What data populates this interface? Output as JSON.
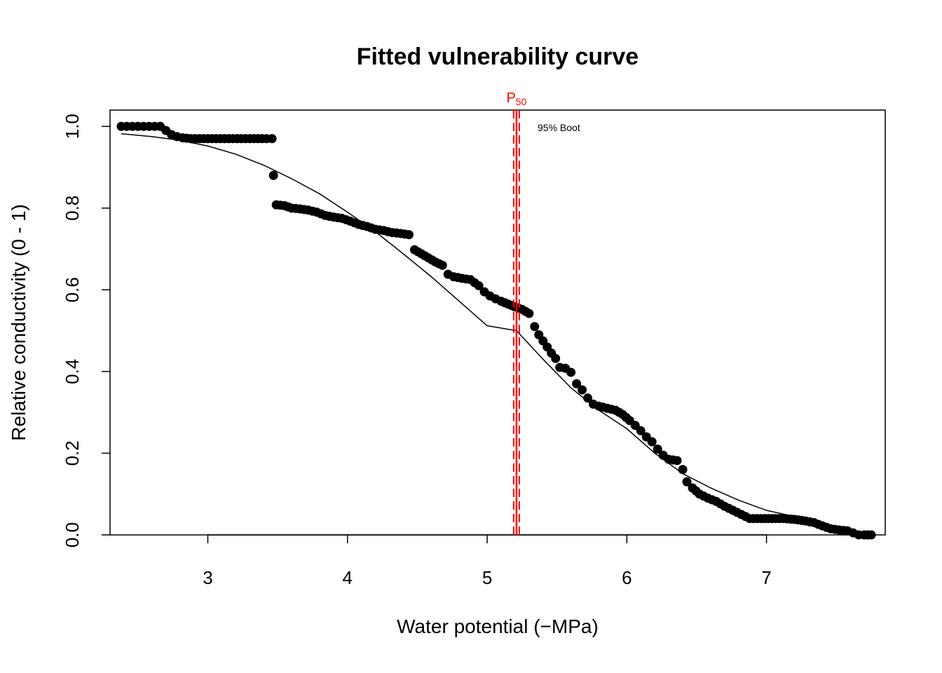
{
  "chart_data": {
    "type": "scatter",
    "title": "Fitted vulnerability curve",
    "xlabel": "Water potential  (−MPa)",
    "ylabel": "Relative conductivity (0 - 1)",
    "xlim": [
      2.3,
      7.85
    ],
    "ylim": [
      0.0,
      1.04
    ],
    "x_ticks": [
      3,
      4,
      5,
      6,
      7
    ],
    "y_ticks": [
      0.0,
      0.2,
      0.4,
      0.6,
      0.8,
      1.0
    ],
    "x_tick_labels": [
      "3",
      "4",
      "5",
      "6",
      "7"
    ],
    "y_tick_labels": [
      "0.0",
      "0.2",
      "0.4",
      "0.6",
      "0.8",
      "1.0"
    ],
    "grid": false,
    "colors": {
      "points": "#000000",
      "fit": "#000000",
      "p50": "#ff0000"
    },
    "observed": {
      "x": [
        2.38,
        2.42,
        2.46,
        2.5,
        2.54,
        2.58,
        2.62,
        2.66,
        2.7,
        2.74,
        2.78,
        2.82,
        2.88,
        2.94,
        3.0,
        3.06,
        3.12,
        3.18,
        3.24,
        3.3,
        3.36,
        3.42,
        3.46,
        3.47,
        3.49,
        3.55,
        3.6,
        3.66,
        3.72,
        3.78,
        3.84,
        3.9,
        3.96,
        4.02,
        4.08,
        4.14,
        4.2,
        4.26,
        4.32,
        4.38,
        4.44,
        4.48,
        4.53,
        4.58,
        4.63,
        4.68,
        4.72,
        4.76,
        4.82,
        4.88,
        4.94,
        4.98,
        5.02,
        5.06,
        5.1,
        5.15,
        5.2,
        5.25,
        5.3,
        5.34,
        5.37,
        5.4,
        5.43,
        5.46,
        5.49,
        5.52,
        5.56,
        5.6,
        5.64,
        5.68,
        5.72,
        5.76,
        5.8,
        5.86,
        5.92,
        5.97,
        6.02,
        6.06,
        6.1,
        6.14,
        6.18,
        6.22,
        6.26,
        6.3,
        6.36,
        6.4,
        6.43,
        6.47,
        6.52,
        6.58,
        6.64,
        6.7,
        6.76,
        6.82,
        6.88,
        6.96,
        7.04,
        7.12,
        7.2,
        7.28,
        7.34,
        7.4,
        7.46,
        7.52,
        7.58,
        7.62,
        7.66,
        7.7,
        7.75
      ],
      "y": [
        1.0,
        1.0,
        1.0,
        1.0,
        1.0,
        1.0,
        1.0,
        1.0,
        0.99,
        0.98,
        0.975,
        0.972,
        0.97,
        0.97,
        0.97,
        0.97,
        0.97,
        0.97,
        0.97,
        0.97,
        0.97,
        0.97,
        0.97,
        0.88,
        0.808,
        0.806,
        0.8,
        0.798,
        0.795,
        0.79,
        0.782,
        0.778,
        0.775,
        0.768,
        0.76,
        0.755,
        0.748,
        0.745,
        0.74,
        0.738,
        0.735,
        0.698,
        0.688,
        0.678,
        0.668,
        0.66,
        0.638,
        0.632,
        0.628,
        0.625,
        0.61,
        0.595,
        0.585,
        0.578,
        0.572,
        0.565,
        0.558,
        0.552,
        0.542,
        0.51,
        0.49,
        0.475,
        0.46,
        0.445,
        0.432,
        0.41,
        0.408,
        0.398,
        0.37,
        0.355,
        0.335,
        0.32,
        0.315,
        0.31,
        0.305,
        0.295,
        0.28,
        0.268,
        0.255,
        0.24,
        0.228,
        0.21,
        0.195,
        0.185,
        0.182,
        0.16,
        0.13,
        0.115,
        0.1,
        0.09,
        0.082,
        0.07,
        0.06,
        0.05,
        0.04,
        0.04,
        0.04,
        0.04,
        0.038,
        0.034,
        0.03,
        0.022,
        0.015,
        0.012,
        0.01,
        0.005,
        0.0,
        0.0,
        0.0
      ]
    },
    "fit": {
      "x": [
        2.38,
        2.6,
        2.8,
        3.0,
        3.2,
        3.4,
        3.6,
        3.8,
        4.0,
        4.2,
        4.4,
        4.6,
        4.8,
        5.0,
        5.21,
        5.4,
        5.6,
        5.8,
        6.0,
        6.2,
        6.4,
        6.6,
        6.8,
        7.0,
        7.2
      ],
      "y": [
        0.982,
        0.975,
        0.966,
        0.952,
        0.932,
        0.905,
        0.872,
        0.835,
        0.79,
        0.742,
        0.688,
        0.632,
        0.572,
        0.512,
        0.5,
        0.43,
        0.36,
        0.305,
        0.26,
        0.2,
        0.15,
        0.115,
        0.085,
        0.06,
        0.045
      ]
    },
    "p50": {
      "value": 5.21,
      "ci": [
        5.19,
        5.23
      ],
      "label_main": "P",
      "label_sub": "50",
      "ci_label": "95% Boot"
    }
  }
}
